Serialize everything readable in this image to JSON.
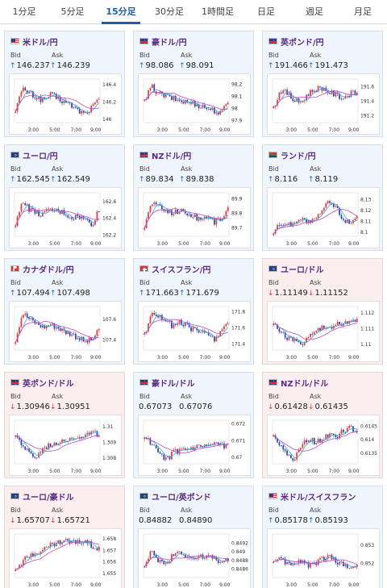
{
  "tabs": [
    {
      "label": "1分足",
      "active": false
    },
    {
      "label": "5分足",
      "active": false
    },
    {
      "label": "15分足",
      "active": true
    },
    {
      "label": "30分足",
      "active": false
    },
    {
      "label": "1時間足",
      "active": false
    },
    {
      "label": "日足",
      "active": false
    },
    {
      "label": "週足",
      "active": false
    },
    {
      "label": "月足",
      "active": false
    }
  ],
  "labels": {
    "bid": "Bid",
    "ask": "Ask"
  },
  "x_ticks": [
    "3:00",
    "5:00",
    "7:00",
    "9:00"
  ],
  "colors": {
    "up_candle": "#e23b3b",
    "down_candle": "#2b43b8",
    "ma_fast": "#3aa7d8",
    "ma_slow": "#c04ad0",
    "up_arrow": "#1f66c4",
    "down_arrow": "#d33333"
  },
  "pairs": [
    {
      "name": "米ドル/円",
      "flag": "us-flag-icon",
      "direction": "up",
      "bid": "146.237",
      "ask": "146.239",
      "chart_data": {
        "type": "candlestick",
        "y_ticks": [
          "146.4",
          "146.2",
          "146"
        ],
        "ylim": [
          145.96,
          146.46
        ],
        "trend": [
          146.12,
          146.34,
          146.3,
          146.25,
          146.22,
          146.28,
          146.24,
          146.2,
          146.16,
          146.1,
          146.06,
          146.14,
          146.22
        ]
      }
    },
    {
      "name": "豪ドル/円",
      "flag": "au-flag-icon",
      "direction": "up",
      "bid": "98.086",
      "ask": "98.091",
      "chart_data": {
        "type": "candlestick",
        "y_ticks": [
          "98.2",
          "98.1",
          "98",
          "97.9"
        ],
        "ylim": [
          97.88,
          98.24
        ],
        "trend": [
          98.05,
          98.18,
          98.12,
          98.1,
          98.08,
          98.06,
          98.05,
          98.04,
          98.02,
          98.0,
          97.98,
          97.95,
          98.06
        ]
      }
    },
    {
      "name": "英ポンド/円",
      "flag": "uk-flag-icon",
      "direction": "up",
      "bid": "191.466",
      "ask": "191.473",
      "chart_data": {
        "type": "candlestick",
        "y_ticks": [
          "191.6",
          "191.4",
          "191.2"
        ],
        "ylim": [
          191.1,
          191.7
        ],
        "trend": [
          191.3,
          191.55,
          191.5,
          191.4,
          191.38,
          191.5,
          191.56,
          191.58,
          191.52,
          191.48,
          191.44,
          191.5,
          191.5
        ]
      }
    },
    {
      "name": "ユーロ/円",
      "flag": "eu-flag-icon",
      "direction": "up",
      "bid": "162.545",
      "ask": "162.549",
      "chart_data": {
        "type": "candlestick",
        "y_ticks": [
          "162.6",
          "162.4",
          "162.2"
        ],
        "ylim": [
          162.18,
          162.7
        ],
        "trend": [
          162.3,
          162.62,
          162.5,
          162.46,
          162.44,
          162.5,
          162.48,
          162.46,
          162.4,
          162.42,
          162.38,
          162.32,
          162.5
        ]
      }
    },
    {
      "name": "NZドル/円",
      "flag": "nz-flag-icon",
      "direction": "up",
      "bid": "89.834",
      "ask": "89.838",
      "chart_data": {
        "type": "candlestick",
        "y_ticks": [
          "89.9",
          "89.8",
          "89.7"
        ],
        "ylim": [
          89.64,
          89.94
        ],
        "trend": [
          89.7,
          89.88,
          89.84,
          89.82,
          89.8,
          89.82,
          89.8,
          89.78,
          89.76,
          89.78,
          89.74,
          89.76,
          89.83
        ]
      }
    },
    {
      "name": "ランド/円",
      "flag": "za-flag-icon",
      "direction": "up",
      "bid": "8.116",
      "ask": "8.119",
      "chart_data": {
        "type": "candlestick",
        "y_ticks": [
          "8.13",
          "8.12",
          "8.11",
          "8.1"
        ],
        "ylim": [
          8.096,
          8.136
        ],
        "trend": [
          8.1,
          8.108,
          8.106,
          8.11,
          8.112,
          8.109,
          8.11,
          8.12,
          8.128,
          8.122,
          8.112,
          8.108,
          8.116
        ]
      }
    },
    {
      "name": "カナダドル/円",
      "flag": "ca-flag-icon",
      "direction": "up",
      "bid": "107.494",
      "ask": "107.498",
      "chart_data": {
        "type": "candlestick",
        "y_ticks": [
          "107.6",
          "107.4"
        ],
        "ylim": [
          107.3,
          107.72
        ],
        "trend": [
          107.4,
          107.66,
          107.6,
          107.56,
          107.52,
          107.55,
          107.52,
          107.48,
          107.46,
          107.42,
          107.38,
          107.4,
          107.49
        ]
      }
    },
    {
      "name": "スイスフラン/円",
      "flag": "ch-flag-icon",
      "direction": "up",
      "bid": "171.663",
      "ask": "171.679",
      "chart_data": {
        "type": "candlestick",
        "y_ticks": [
          "171.8",
          "171.6",
          "171.4"
        ],
        "ylim": [
          171.32,
          171.86
        ],
        "trend": [
          171.5,
          171.8,
          171.74,
          171.7,
          171.62,
          171.66,
          171.62,
          171.58,
          171.55,
          171.5,
          171.46,
          171.56,
          171.66
        ]
      }
    },
    {
      "name": "ユーロ/ドル",
      "flag": "eu-us-flag-icon",
      "direction": "down",
      "bid": "1.11149",
      "ask": "1.11152",
      "chart_data": {
        "type": "candlestick",
        "y_ticks": [
          "1.112",
          "1.111",
          "1.11"
        ],
        "ylim": [
          1.1096,
          1.1124
        ],
        "trend": [
          1.1112,
          1.1108,
          1.1104,
          1.1102,
          1.11,
          1.1104,
          1.1108,
          1.111,
          1.1111,
          1.1112,
          1.1114,
          1.1114,
          1.1115
        ]
      }
    },
    {
      "name": "英ポンド/ドル",
      "flag": "uk-us-flag-icon",
      "direction": "down",
      "bid": "1.30946",
      "ask": "1.30951",
      "chart_data": {
        "type": "candlestick",
        "y_ticks": [
          "1.31",
          "1.309",
          "1.308"
        ],
        "ylim": [
          1.3076,
          1.3104
        ],
        "trend": [
          1.3094,
          1.3088,
          1.3082,
          1.308,
          1.3086,
          1.3088,
          1.309,
          1.3092,
          1.3092,
          1.3094,
          1.3094,
          1.3096,
          1.3095
        ]
      }
    },
    {
      "name": "豪ドル/ドル",
      "flag": "au-us-flag-icon",
      "direction": "none",
      "bid": "0.67073",
      "ask": "0.67076",
      "chart_data": {
        "type": "candlestick",
        "y_ticks": [
          "0.672",
          "0.671",
          "0.67"
        ],
        "ylim": [
          0.6696,
          0.6722
        ],
        "trend": [
          0.6712,
          0.6708,
          0.6702,
          0.6698,
          0.6702,
          0.6704,
          0.6704,
          0.6705,
          0.6706,
          0.6706,
          0.6707,
          0.6707,
          0.6707
        ]
      }
    },
    {
      "name": "NZドル/ドル",
      "flag": "nz-us-flag-icon",
      "direction": "down",
      "bid": "0.61428",
      "ask": "0.61435",
      "chart_data": {
        "type": "candlestick",
        "y_ticks": [
          "0.6145",
          "0.614",
          "0.6135"
        ],
        "ylim": [
          0.6131,
          0.6147
        ],
        "trend": [
          0.6142,
          0.6138,
          0.6134,
          0.6132,
          0.6138,
          0.614,
          0.6139,
          0.614,
          0.6142,
          0.6141,
          0.6143,
          0.6144,
          0.6143
        ]
      }
    },
    {
      "name": "ユーロ/豪ドル",
      "flag": "eu-au-flag-icon",
      "direction": "down",
      "bid": "1.65707",
      "ask": "1.65721",
      "chart_data": {
        "type": "candlestick",
        "y_ticks": [
          "1.658",
          "1.657",
          "1.656",
          "1.655"
        ],
        "ylim": [
          1.6546,
          1.6584
        ],
        "trend": [
          1.6555,
          1.656,
          1.6565,
          1.6568,
          1.657,
          1.6574,
          1.6576,
          1.6578,
          1.6577,
          1.6576,
          1.6578,
          1.6574,
          1.6571
        ]
      }
    },
    {
      "name": "ユーロ/英ポンド",
      "flag": "eu-uk-flag-icon",
      "direction": "none",
      "bid": "0.84882",
      "ask": "0.84890",
      "chart_data": {
        "type": "candlestick",
        "y_ticks": [
          "0.8492",
          "0.849",
          "0.8488",
          "0.8486"
        ],
        "ylim": [
          0.8484,
          0.8494
        ],
        "trend": [
          0.8486,
          0.849,
          0.8488,
          0.8487,
          0.8489,
          0.849,
          0.8489,
          0.8488,
          0.8489,
          0.8489,
          0.8488,
          0.8488,
          0.8488
        ]
      }
    },
    {
      "name": "米ドル/スイスフラン",
      "flag": "us-ch-flag-icon",
      "direction": "up",
      "bid": "0.85178",
      "ask": "0.85193",
      "chart_data": {
        "type": "candlestick",
        "y_ticks": [
          "0.853",
          "0.852"
        ],
        "ylim": [
          0.8512,
          0.8536
        ],
        "trend": [
          0.852,
          0.8522,
          0.8519,
          0.852,
          0.8521,
          0.8519,
          0.852,
          0.8522,
          0.8524,
          0.8521,
          0.8519,
          0.8518,
          0.8518
        ]
      }
    }
  ]
}
